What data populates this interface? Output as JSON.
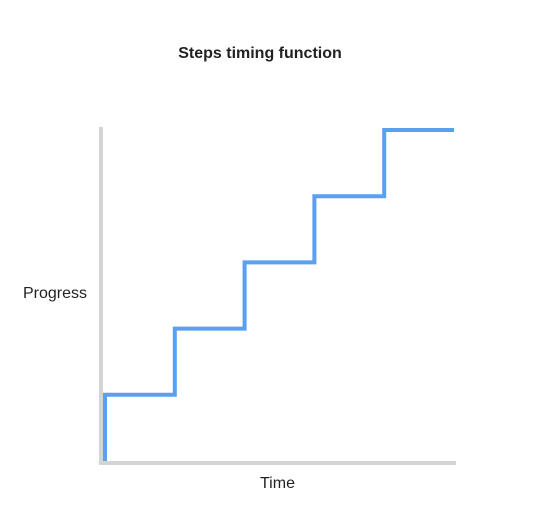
{
  "chart_data": {
    "type": "line",
    "title": "Steps timing function",
    "xlabel": "Time",
    "ylabel": "Progress",
    "step": true,
    "x": [
      0,
      0,
      0.2,
      0.2,
      0.4,
      0.4,
      0.6,
      0.6,
      0.8,
      0.8,
      1.0
    ],
    "y": [
      0,
      0.2,
      0.2,
      0.4,
      0.4,
      0.6,
      0.6,
      0.8,
      0.8,
      1.0,
      1.0
    ],
    "xlim": [
      0,
      1
    ],
    "ylim": [
      0,
      1
    ],
    "grid": false,
    "tick_labels": false,
    "colors": {
      "series": "#5a9ff0",
      "axis": "#d4d4d4"
    }
  }
}
